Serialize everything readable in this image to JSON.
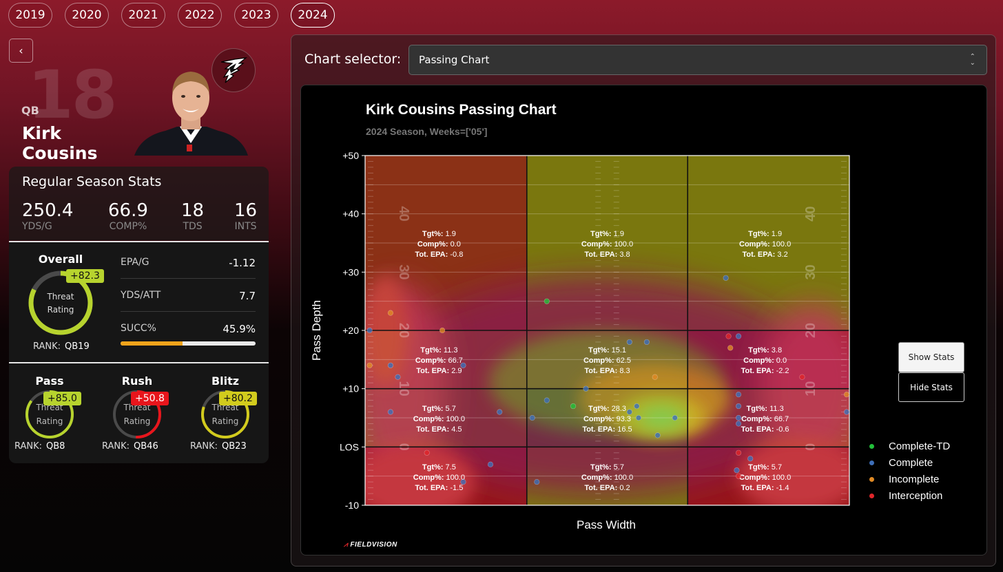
{
  "years": [
    {
      "label": "2019",
      "active": false
    },
    {
      "label": "2020",
      "active": false
    },
    {
      "label": "2021",
      "active": false
    },
    {
      "label": "2022",
      "active": false
    },
    {
      "label": "2023",
      "active": false
    },
    {
      "label": "2024",
      "active": true
    }
  ],
  "player": {
    "number": "18",
    "position": "QB",
    "name": "Kirk Cousins"
  },
  "season_stats": {
    "title": "Regular Season Stats",
    "items": [
      {
        "value": "250.4",
        "label": "YDS/G"
      },
      {
        "value": "66.9",
        "label": "COMP%"
      },
      {
        "value": "18",
        "label": "TDS"
      },
      {
        "value": "16",
        "label": "INTS"
      }
    ]
  },
  "overall": {
    "title": "Overall",
    "badge": "+82.3",
    "badge_color": "#b7d32e",
    "center_line1": "Threat",
    "center_line2": "Rating",
    "rank_label": "RANK:",
    "rank_value": "QB19",
    "progress": 0.823,
    "metrics": [
      {
        "label": "EPA/G",
        "value": "-1.12"
      },
      {
        "label": "YDS/ATT",
        "value": "7.7"
      },
      {
        "label": "SUCC%",
        "value": "45.9%"
      }
    ],
    "succ_fraction": 0.459
  },
  "sub_ratings": [
    {
      "title": "Pass",
      "badge": "+85.0",
      "badge_color": "#b7d32e",
      "line1": "Threat",
      "line2": "Rating",
      "rank_label": "RANK:",
      "rank": "QB8",
      "progress": 0.85,
      "arc_color": "#b7d32e"
    },
    {
      "title": "Rush",
      "badge": "+50.8",
      "badge_color": "#e8151c",
      "line1": "Threat",
      "line2": "Rating",
      "rank_label": "RANK:",
      "rank": "QB46",
      "progress": 0.508,
      "arc_color": "#e8151c"
    },
    {
      "title": "Blitz",
      "badge": "+80.2",
      "badge_color": "#d2cb1d",
      "line1": "Threat",
      "line2": "Rating",
      "rank_label": "RANK:",
      "rank": "QB23",
      "progress": 0.802,
      "arc_color": "#d2cb1d"
    }
  ],
  "selector": {
    "label": "Chart selector:",
    "value": "Passing Chart"
  },
  "buttons": {
    "show": "Show Stats",
    "hide": "Hide Stats"
  },
  "brand": "FIELDVISION",
  "chart_data": {
    "type": "scatter",
    "title": "Kirk Cousins Passing Chart",
    "subtitle": "2024 Season, Weeks=['05']",
    "xlabel": "Pass Width",
    "ylabel": "Pass Depth",
    "ylim": [
      -10,
      50
    ],
    "xlim": [
      0,
      53.3
    ],
    "y_ticks": [
      {
        "v": 50,
        "label": "+50"
      },
      {
        "v": 40,
        "label": "+40"
      },
      {
        "v": 30,
        "label": "+30"
      },
      {
        "v": 20,
        "label": "+20"
      },
      {
        "v": 10,
        "label": "+10"
      },
      {
        "v": 0,
        "label": "LOS"
      },
      {
        "v": -10,
        "label": "-10"
      }
    ],
    "field_numbers": [
      {
        "y": 40,
        "label": "40"
      },
      {
        "y": 30,
        "label": "30"
      },
      {
        "y": 20,
        "label": "20"
      },
      {
        "y": 10,
        "label": "10"
      },
      {
        "y": 0,
        "label": "0"
      }
    ],
    "zones": [
      {
        "row": 0,
        "col": 0,
        "tgt": "1.9",
        "comp": "0.0",
        "epa": "-0.8",
        "color": "#a33a1a"
      },
      {
        "row": 0,
        "col": 1,
        "tgt": "1.9",
        "comp": "100.0",
        "epa": "3.8",
        "color": "#8f8c10"
      },
      {
        "row": 0,
        "col": 2,
        "tgt": "1.9",
        "comp": "100.0",
        "epa": "3.2",
        "color": "#8f8c10"
      },
      {
        "row": 1,
        "col": 0,
        "tgt": "11.3",
        "comp": "66.7",
        "epa": "2.9",
        "color": "#b07d14"
      },
      {
        "row": 1,
        "col": 1,
        "tgt": "15.1",
        "comp": "62.5",
        "epa": "8.3",
        "color": "#9a9712"
      },
      {
        "row": 1,
        "col": 2,
        "tgt": "3.8",
        "comp": "0.0",
        "epa": "-2.2",
        "color": "#b01a1c"
      },
      {
        "row": 2,
        "col": 0,
        "tgt": "5.7",
        "comp": "100.0",
        "epa": "4.5",
        "color": "#8f8c10"
      },
      {
        "row": 2,
        "col": 1,
        "tgt": "28.3",
        "comp": "93.3",
        "epa": "16.5",
        "color": "#1f8a2a"
      },
      {
        "row": 2,
        "col": 2,
        "tgt": "11.3",
        "comp": "66.7",
        "epa": "-0.6",
        "color": "#b36a16"
      },
      {
        "row": 3,
        "col": 0,
        "tgt": "7.5",
        "comp": "100.0",
        "epa": "-1.5",
        "color": "#b01a1c"
      },
      {
        "row": 3,
        "col": 1,
        "tgt": "5.7",
        "comp": "100.0",
        "epa": "0.2",
        "color": "#8f8c10"
      },
      {
        "row": 3,
        "col": 2,
        "tgt": "5.7",
        "comp": "100.0",
        "epa": "-1.4",
        "color": "#b01a1c"
      }
    ],
    "zone_labels": {
      "tgt": "Tgt%:",
      "comp": "Comp%:",
      "epa": "Tot. EPA:"
    },
    "legend": [
      {
        "name": "Complete-TD",
        "color": "#22c03a"
      },
      {
        "name": "Complete",
        "color": "#3e6fb8"
      },
      {
        "name": "Incomplete",
        "color": "#e08a25"
      },
      {
        "name": "Interception",
        "color": "#e0262a"
      }
    ],
    "points": [
      {
        "x": 0.5,
        "y": 20,
        "t": "Complete"
      },
      {
        "x": 2.8,
        "y": 23,
        "t": "Incomplete"
      },
      {
        "x": 8.5,
        "y": 20,
        "t": "Incomplete"
      },
      {
        "x": 0.5,
        "y": 14,
        "t": "Incomplete"
      },
      {
        "x": 2.8,
        "y": 14,
        "t": "Complete"
      },
      {
        "x": 3.6,
        "y": 12,
        "t": "Complete"
      },
      {
        "x": 10.8,
        "y": 14,
        "t": "Complete"
      },
      {
        "x": 2.8,
        "y": 6,
        "t": "Complete"
      },
      {
        "x": 6.8,
        "y": -1,
        "t": "Interception"
      },
      {
        "x": 10.8,
        "y": -6,
        "t": "Complete"
      },
      {
        "x": 13.8,
        "y": -3,
        "t": "Complete"
      },
      {
        "x": 14.8,
        "y": 6,
        "t": "Complete"
      },
      {
        "x": 18.4,
        "y": 5,
        "t": "Complete"
      },
      {
        "x": 20.0,
        "y": 25,
        "t": "Complete-TD"
      },
      {
        "x": 20.0,
        "y": 8,
        "t": "Complete"
      },
      {
        "x": 22.9,
        "y": 7,
        "t": "Complete-TD"
      },
      {
        "x": 24.3,
        "y": 10,
        "t": "Complete"
      },
      {
        "x": 18.9,
        "y": -6,
        "t": "Complete"
      },
      {
        "x": 29.1,
        "y": 18,
        "t": "Complete"
      },
      {
        "x": 31.0,
        "y": 18,
        "t": "Complete"
      },
      {
        "x": 30.1,
        "y": 5,
        "t": "Complete"
      },
      {
        "x": 32.2,
        "y": 2,
        "t": "Complete"
      },
      {
        "x": 31.9,
        "y": 12,
        "t": "Incomplete"
      },
      {
        "x": 34.1,
        "y": 5,
        "t": "Complete"
      },
      {
        "x": 29.9,
        "y": 7,
        "t": "Complete"
      },
      {
        "x": 29.1,
        "y": 6,
        "t": "Complete"
      },
      {
        "x": 40.2,
        "y": 17,
        "t": "Incomplete"
      },
      {
        "x": 39.7,
        "y": 29,
        "t": "Complete"
      },
      {
        "x": 41.1,
        "y": 19,
        "t": "Complete"
      },
      {
        "x": 40.0,
        "y": 19,
        "t": "Interception"
      },
      {
        "x": 41.1,
        "y": 9,
        "t": "Complete"
      },
      {
        "x": 41.1,
        "y": 7,
        "t": "Complete"
      },
      {
        "x": 41.1,
        "y": 5,
        "t": "Complete"
      },
      {
        "x": 41.1,
        "y": 4,
        "t": "Complete"
      },
      {
        "x": 40.9,
        "y": -4,
        "t": "Complete"
      },
      {
        "x": 41.1,
        "y": -1,
        "t": "Interception"
      },
      {
        "x": 42.4,
        "y": -2,
        "t": "Complete"
      },
      {
        "x": 41.1,
        "y": -5,
        "t": "Interception"
      },
      {
        "x": 48.1,
        "y": 12,
        "t": "Interception"
      },
      {
        "x": 53.0,
        "y": 9,
        "t": "Incomplete"
      },
      {
        "x": 53.0,
        "y": 6,
        "t": "Complete"
      }
    ]
  }
}
